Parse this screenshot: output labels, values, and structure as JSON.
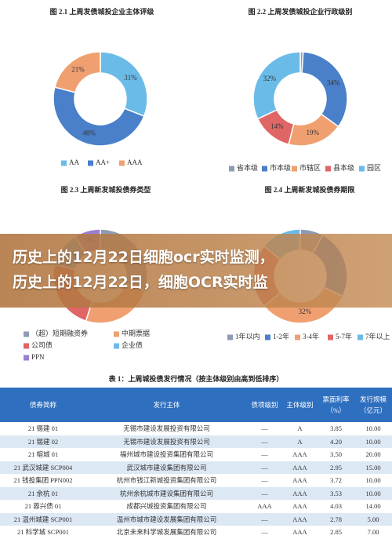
{
  "chart_data": [
    {
      "type": "donut",
      "title": "图 2.1  上周发债城投企业主体评级",
      "categories": [
        "AA",
        "AA+",
        "AAA"
      ],
      "values": [
        31,
        48,
        21
      ],
      "value_labels": [
        "31%",
        "48%",
        "21%"
      ],
      "colors": [
        "#6bbbe8",
        "#4a7fc9",
        "#f0a070"
      ]
    },
    {
      "type": "donut",
      "title": "图 2.2  上周发债城投企业行政级别",
      "categories": [
        "省本级",
        "市本级",
        "市辖区",
        "县本级",
        "园区"
      ],
      "values": [
        1,
        34,
        19,
        14,
        32
      ],
      "value_labels": [
        null,
        "34%",
        "19%",
        "14%",
        "32%"
      ],
      "colors": [
        "#8e9bb5",
        "#4a7fc9",
        "#f0a070",
        "#e06666",
        "#6bbbe8"
      ]
    },
    {
      "type": "donut",
      "title": "图 2.3  上周新发城投债券类型",
      "categories": [
        "（超）短期融资券",
        "中期票据",
        "公司债",
        "企业债",
        "PPN"
      ],
      "values": [
        30,
        25,
        24,
        12,
        9
      ],
      "value_labels": [
        null,
        null,
        null,
        "12%",
        "9%"
      ],
      "colors": [
        "#8e9bb5",
        "#f0a070",
        "#e06666",
        "#6bbbe8",
        "#9b7fd0"
      ]
    },
    {
      "type": "donut",
      "title": "图 2.4  上周新发城投债券期限",
      "categories": [
        "1年以内",
        "1-2年",
        "3-4年",
        "5-7年",
        "7年以上"
      ],
      "values": [
        8,
        24,
        32,
        22,
        14
      ],
      "value_labels": [
        null,
        null,
        "32%",
        null,
        null
      ],
      "colors": [
        "#8e9bb5",
        "#4a7fc9",
        "#f0a070",
        "#e06666",
        "#6bbbe8"
      ]
    }
  ],
  "banner": {
    "lines": [
      "历史上的12月22日细胞ocr实时监测，",
      "历史上的12月22日，细胞OCR实时监"
    ]
  },
  "table": {
    "title": "表 1：上周城投债发行情况（按主体级别由高到低排序）",
    "header": [
      "债券简称",
      "发行主体",
      "债项级别",
      "主体级别",
      "票面利率（%）",
      "发行规模（亿元）"
    ],
    "rows": [
      [
        "21 锡建 01",
        "无锡市建设发展投资有限公司",
        "—",
        "A",
        "3.85",
        "10.00"
      ],
      [
        "21 锡建 02",
        "无锡市建设发展投资有限公司",
        "—",
        "A",
        "4.20",
        "10.00"
      ],
      [
        "21 榕城 01",
        "福州城市建设投资集团有限公司",
        "—",
        "AAA",
        "3.50",
        "20.00"
      ],
      [
        "21 武汉城建 SCP004",
        "武汉城市建设集团有限公司",
        "—",
        "AAA",
        "2.95",
        "15.00"
      ],
      [
        "21 钱投集团 PPN002",
        "杭州市钱江新城投资集团有限公司",
        "—",
        "AAA",
        "3.72",
        "10.00"
      ],
      [
        "21 余杭 01",
        "杭州余杭城市建设集团有限公司",
        "—",
        "AAA",
        "3.53",
        "10.00"
      ],
      [
        "21 蓉兴债 01",
        "成都兴城投资集团有限公司",
        "AAA",
        "AAA",
        "4.03",
        "14.00"
      ],
      [
        "21 温州城建 SCP001",
        "温州市城市建设发展集团有限公司",
        "—",
        "AAA",
        "2.78",
        "5.00"
      ],
      [
        "21 科学城 SCP001",
        "北京未来科学城发展集团有限公司",
        "—",
        "AAA",
        "2.85",
        "7.00"
      ]
    ]
  }
}
